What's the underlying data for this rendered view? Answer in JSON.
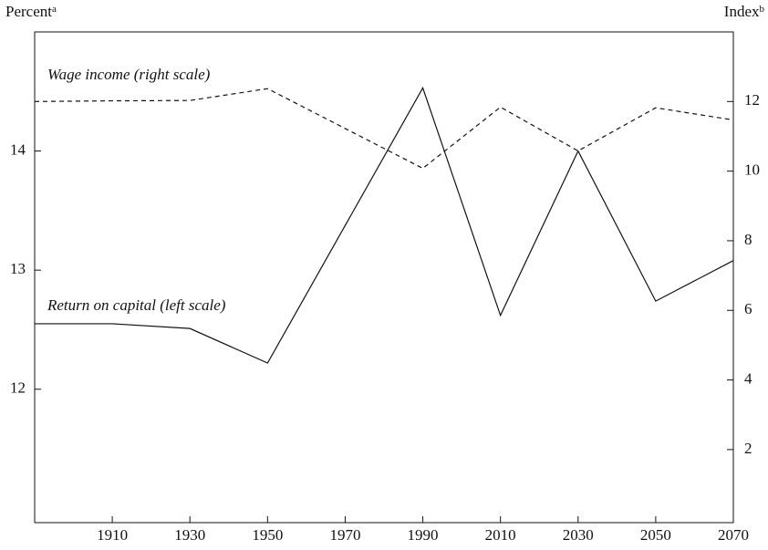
{
  "chart_data": {
    "type": "line",
    "y_label": "Percent",
    "y_label_note": "a",
    "y2_label": "Index",
    "y2_label_note": "b",
    "annotations": [
      "Wage income (right scale)",
      "Return on capital (left scale)"
    ],
    "x": [
      1890,
      1910,
      1930,
      1950,
      1990,
      2010,
      2030,
      2050,
      2070
    ],
    "xlim": [
      1890,
      2070
    ],
    "xticks": [
      1910,
      1930,
      1950,
      1970,
      1990,
      2010,
      2030,
      2050,
      2070
    ],
    "ylim": [
      10.88,
      15.0
    ],
    "yticks": [
      12,
      13,
      14
    ],
    "y2lim": [
      -0.1,
      14.0
    ],
    "y2ticks": [
      2,
      4,
      6,
      8,
      10,
      12
    ],
    "series": [
      {
        "name": "Return on capital",
        "color": "#111111",
        "dash": false,
        "values": [
          12.55,
          12.55,
          12.51,
          12.22,
          14.53,
          12.62,
          14.0,
          12.74,
          13.08
        ]
      },
      {
        "name": "Wage income",
        "color": "#111111",
        "dash": true,
        "axis": "y2",
        "values": [
          12.0,
          12.02,
          12.03,
          12.37,
          10.08,
          11.84,
          10.58,
          11.82,
          11.47
        ]
      }
    ]
  }
}
